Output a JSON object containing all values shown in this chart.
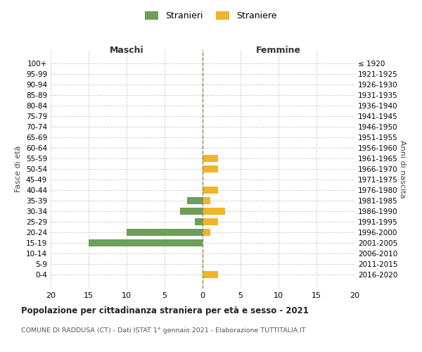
{
  "age_groups": [
    "100+",
    "95-99",
    "90-94",
    "85-89",
    "80-84",
    "75-79",
    "70-74",
    "65-69",
    "60-64",
    "55-59",
    "50-54",
    "45-49",
    "40-44",
    "35-39",
    "30-34",
    "25-29",
    "20-24",
    "15-19",
    "10-14",
    "5-9",
    "0-4"
  ],
  "birth_years": [
    "≤ 1920",
    "1921-1925",
    "1926-1930",
    "1931-1935",
    "1936-1940",
    "1941-1945",
    "1946-1950",
    "1951-1955",
    "1956-1960",
    "1961-1965",
    "1966-1970",
    "1971-1975",
    "1976-1980",
    "1981-1985",
    "1986-1990",
    "1991-1995",
    "1996-2000",
    "2001-2005",
    "2006-2010",
    "2011-2015",
    "2016-2020"
  ],
  "maschi": [
    0,
    0,
    0,
    0,
    0,
    0,
    0,
    0,
    0,
    0,
    0,
    0,
    0,
    2,
    3,
    1,
    10,
    15,
    0,
    0,
    0
  ],
  "femmine": [
    0,
    0,
    0,
    0,
    0,
    0,
    0,
    0,
    0,
    2,
    2,
    0,
    2,
    1,
    3,
    2,
    1,
    0,
    0,
    0,
    2
  ],
  "color_maschi": "#6d9e5a",
  "color_femmine": "#f0b429",
  "background_color": "#ffffff",
  "grid_color": "#cccccc",
  "zero_line_color": "#888855",
  "title": "Popolazione per cittadinanza straniera per età e sesso - 2021",
  "subtitle": "COMUNE DI RADDUSA (CT) - Dati ISTAT 1° gennaio 2021 - Elaborazione TUTTITALIA.IT",
  "xlabel_left": "Maschi",
  "xlabel_right": "Femmine",
  "ylabel_left": "Fasce di età",
  "ylabel_right": "Anni di nascita",
  "legend_maschi": "Stranieri",
  "legend_femmine": "Straniere",
  "xlim": 20
}
